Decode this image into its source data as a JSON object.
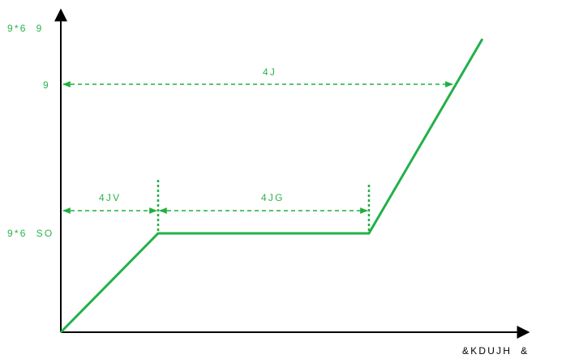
{
  "y_labels": {
    "top": "9*6  9",
    "mid": "9",
    "low": "9*6  SO"
  },
  "x_label": "&KDUJH  &",
  "intervals": {
    "total": "4J",
    "first": "4JV",
    "second": "4JG"
  },
  "colors": {
    "curve": "#22b04a",
    "dimension": "#1fb040",
    "axis": "#000000",
    "text_green": "#2bb34a"
  }
}
